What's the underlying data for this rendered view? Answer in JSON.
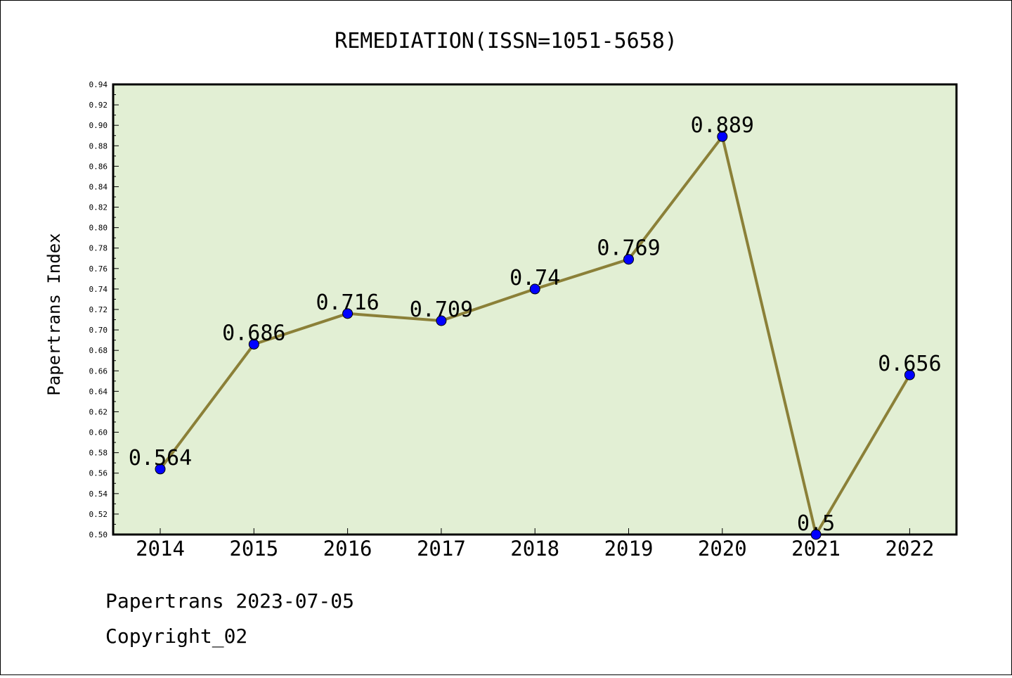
{
  "chart_data": {
    "type": "line",
    "title": "REMEDIATION(ISSN=1051-5658)",
    "xlabel": "",
    "ylabel": "Papertrans Index",
    "categories": [
      "2014",
      "2015",
      "2016",
      "2017",
      "2018",
      "2019",
      "2020",
      "2021",
      "2022"
    ],
    "series": [
      {
        "values": [
          0.564,
          0.686,
          0.716,
          0.709,
          0.74,
          0.769,
          0.889,
          0.5,
          0.656
        ],
        "labels": [
          "0.564",
          "0.686",
          "0.716",
          "0.709",
          "0.74",
          "0.769",
          "0.889",
          "0.5",
          "0.656"
        ]
      }
    ],
    "ylim": [
      0.5,
      0.94
    ],
    "yticks": [
      "0.50",
      "0.52",
      "0.54",
      "0.56",
      "0.58",
      "0.60",
      "0.62",
      "0.64",
      "0.66",
      "0.68",
      "0.70",
      "0.72",
      "0.74",
      "0.76",
      "0.78",
      "0.80",
      "0.82",
      "0.84",
      "0.86",
      "0.88",
      "0.90",
      "0.92",
      "0.94"
    ],
    "grid": false,
    "colors": {
      "plot_background": "#e2efd4",
      "line": "#8b8038",
      "marker": "#0000ff"
    }
  },
  "footer": {
    "line1": "Papertrans 2023-07-05",
    "line2": "Copyright_02"
  }
}
